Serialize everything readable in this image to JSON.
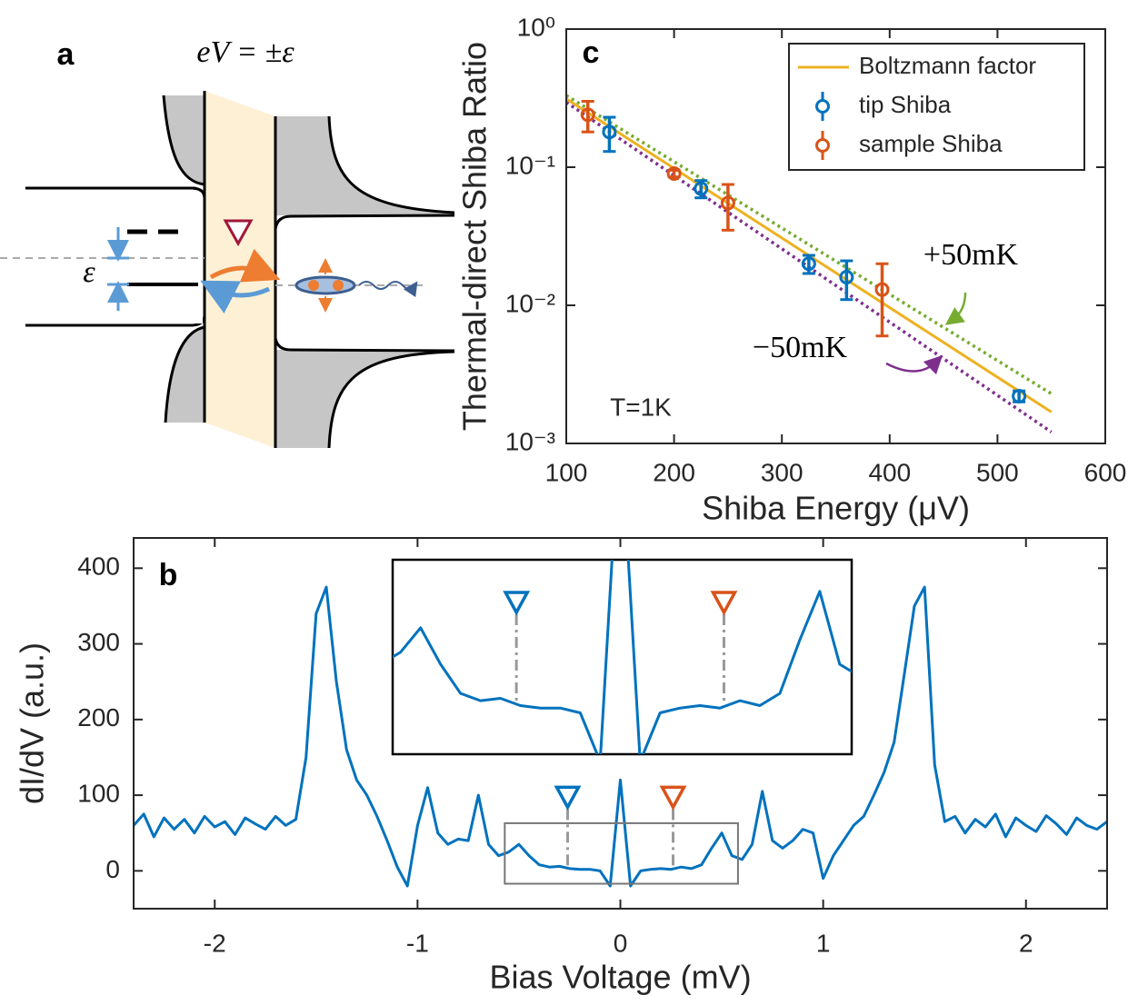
{
  "diagram": {
    "label": "a",
    "equation": "eV = ±ε",
    "epsilon": "ε"
  },
  "chart_data": [
    {
      "type": "scatter",
      "label": "c",
      "xlabel": "Shiba Energy (μV)",
      "ylabel": "Thermal-direct Shiba Ratio",
      "xlim": [
        100,
        600
      ],
      "xticks": [
        100,
        200,
        300,
        400,
        500,
        600
      ],
      "ylim": [
        0.001,
        1
      ],
      "log_y": true,
      "yticks": [
        {
          "value": 0.001,
          "label": "10⁻³"
        },
        {
          "value": 0.01,
          "label": "10⁻²"
        },
        {
          "value": 0.1,
          "label": "10⁻¹"
        },
        {
          "value": 1,
          "label": "10⁰"
        }
      ],
      "legend": "upper right",
      "series": [
        {
          "color": "#77ac30",
          "dash": "dotted",
          "x": [
            100,
            550
          ],
          "values": [
            0.331,
            0.00229
          ]
        },
        {
          "color": "#7e2f8e",
          "dash": "dotted",
          "x": [
            100,
            550
          ],
          "values": [
            0.295,
            0.00121
          ]
        },
        {
          "name": "Boltzmann factor",
          "color": "#edb120",
          "x": [
            100,
            550
          ],
          "values": [
            0.313,
            0.00169
          ]
        },
        {
          "name": "tip Shiba",
          "color": "#0072bd",
          "x": [
            140,
            225,
            325,
            360,
            520
          ],
          "values": [
            0.18,
            0.07,
            0.02,
            0.016,
            0.0022
          ],
          "errors": [
            0.05,
            0.01,
            0.003,
            0.005,
            0.0002
          ]
        },
        {
          "name": "sample Shiba",
          "color": "#d95319",
          "x": [
            120,
            200,
            250,
            393
          ],
          "values": [
            0.24,
            0.09,
            0.055,
            0.013
          ],
          "errors": [
            0.06,
            0.005,
            0.02,
            0.007
          ]
        }
      ],
      "annotations": [
        "+50mK",
        "−50mK",
        "T=1K"
      ]
    },
    {
      "type": "line",
      "label": "b",
      "xlabel": "Bias Voltage (mV)",
      "ylabel": "dI/dV (a.u.)",
      "xlim": [
        -2.4,
        2.4
      ],
      "xticks": [
        -2,
        -1,
        0,
        1,
        2
      ],
      "ylim": [
        -50,
        440
      ],
      "yticks": [
        0,
        100,
        200,
        300,
        400
      ],
      "x": [
        -2.4,
        -2.35,
        -2.3,
        -2.25,
        -2.2,
        -2.15,
        -2.1,
        -2.05,
        -2,
        -1.95,
        -1.9,
        -1.85,
        -1.8,
        -1.75,
        -1.7,
        -1.65,
        -1.6,
        -1.55,
        -1.5,
        -1.45,
        -1.4,
        -1.35,
        -1.3,
        -1.25,
        -1.2,
        -1.15,
        -1.1,
        -1.05,
        -1,
        -0.95,
        -0.9,
        -0.85,
        -0.8,
        -0.75,
        -0.7,
        -0.65,
        -0.6,
        -0.55,
        -0.5,
        -0.45,
        -0.4,
        -0.35,
        -0.3,
        -0.25,
        -0.2,
        -0.15,
        -0.1,
        -0.05,
        0,
        0.05,
        0.1,
        0.15,
        0.2,
        0.25,
        0.3,
        0.35,
        0.4,
        0.45,
        0.5,
        0.55,
        0.6,
        0.65,
        0.7,
        0.75,
        0.8,
        0.85,
        0.9,
        0.95,
        1,
        1.05,
        1.1,
        1.15,
        1.2,
        1.25,
        1.3,
        1.35,
        1.4,
        1.45,
        1.5,
        1.55,
        1.6,
        1.65,
        1.7,
        1.75,
        1.8,
        1.85,
        1.9,
        1.95,
        2,
        2.05,
        2.1,
        2.15,
        2.2,
        2.25,
        2.3,
        2.35,
        2.4
      ],
      "series": [
        {
          "color": "#0072bd",
          "values": [
            60,
            75,
            45,
            70,
            55,
            68,
            50,
            72,
            58,
            65,
            48,
            70,
            62,
            55,
            72,
            60,
            68,
            150,
            340,
            375,
            250,
            160,
            120,
            100,
            72,
            40,
            5,
            -20,
            60,
            110,
            50,
            35,
            42,
            40,
            100,
            35,
            20,
            25,
            35,
            20,
            8,
            5,
            6,
            3,
            2,
            2,
            0,
            -20,
            120,
            -20,
            0,
            2,
            3,
            2,
            5,
            3,
            8,
            30,
            50,
            20,
            15,
            35,
            105,
            40,
            30,
            40,
            55,
            50,
            -10,
            20,
            40,
            60,
            72,
            100,
            130,
            170,
            260,
            350,
            375,
            140,
            65,
            72,
            50,
            68,
            58,
            75,
            45,
            70,
            60,
            52,
            73,
            62,
            48,
            70,
            60,
            55,
            65
          ]
        }
      ],
      "markers": [
        {
          "x": -0.26,
          "color": "#0072bd"
        },
        {
          "x": 0.26,
          "color": "#d95319"
        }
      ],
      "inset": {
        "xlim": [
          -0.57,
          0.58
        ],
        "ylim": [
          -17,
          63
        ]
      }
    }
  ]
}
